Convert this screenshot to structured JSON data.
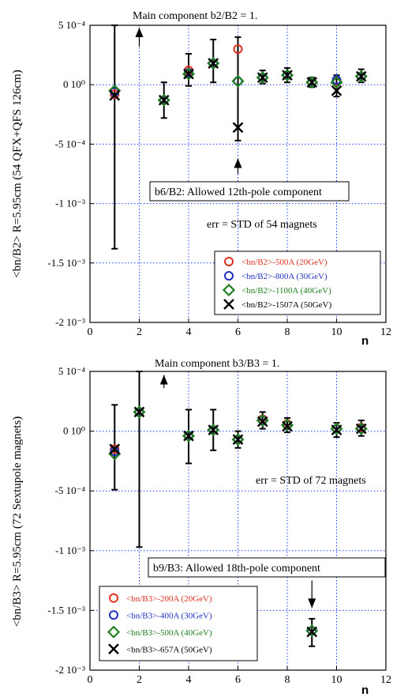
{
  "chart_data": [
    {
      "type": "scatter",
      "title": "Main component b2/B2 = 1.",
      "ylabel": "<bn/B2> R=5.95cm (54 QFX+QFS 126cm)",
      "xlabel": "n",
      "xlim": [
        0,
        12
      ],
      "ylim": [
        -0.002,
        0.0005
      ],
      "x_ticks": [
        0,
        2,
        4,
        6,
        8,
        10,
        12
      ],
      "y_ticks": [
        {
          "value": 0.0005,
          "label": "5 10⁻⁴"
        },
        {
          "value": 0,
          "label": "0 10⁰"
        },
        {
          "value": -0.0005,
          "label": "-5 10⁻⁴"
        },
        {
          "value": -0.001,
          "label": "-1 10⁻³"
        },
        {
          "value": -0.0015,
          "label": "-1.5 10⁻³"
        },
        {
          "value": -0.002,
          "label": "-2 10⁻³"
        }
      ],
      "grid": true,
      "annotations": {
        "component_note": "b6/B2: Allowed 12th-pole component",
        "err_note": "err = STD of 54 magnets"
      },
      "legend_position": "bottom-right",
      "series": [
        {
          "name": "<bn/B2>-500A  (20GeV)",
          "color": "#e03020",
          "marker": "circle",
          "x": [
            1,
            3,
            4,
            5,
            6,
            7,
            8,
            9,
            10,
            11
          ],
          "y": [
            -8e-05,
            -0.00013,
            0.00012,
            0.00018,
            0.0003,
            6e-05,
            8e-05,
            2e-05,
            3e-05,
            7e-05
          ]
        },
        {
          "name": "<bn/B2>-800A  (30GeV)",
          "color": "#2030c0",
          "marker": "circle",
          "x": [
            1,
            3,
            4,
            5,
            6,
            7,
            8,
            9,
            10,
            11
          ],
          "y": [
            -6e-05,
            -0.00013,
            0.0001,
            0.00018,
            3e-05,
            6e-05,
            8e-05,
            2e-05,
            4e-05,
            7e-05
          ]
        },
        {
          "name": "<bn/B2>-1100A (40GeV)",
          "color": "#208020",
          "marker": "diamond",
          "x": [
            1,
            3,
            4,
            5,
            6,
            7,
            8,
            9,
            10,
            11
          ],
          "y": [
            -5e-05,
            -0.00013,
            9e-05,
            0.00018,
            3e-05,
            6e-05,
            8e-05,
            2e-05,
            2e-05,
            7e-05
          ]
        },
        {
          "name": "<bn/B2>-1507A (50GeV)",
          "color": "#000000",
          "marker": "x",
          "x": [
            1,
            3,
            4,
            5,
            6,
            7,
            8,
            9,
            10,
            11
          ],
          "y": [
            -9e-05,
            -0.00013,
            9e-05,
            0.00018,
            -0.00036,
            6e-05,
            8e-05,
            2e-05,
            -5e-05,
            7e-05
          ]
        }
      ],
      "error_bars": [
        {
          "x": 1,
          "low": -0.00138,
          "high": 0.0005
        },
        {
          "x": 3,
          "low": -0.00028,
          "high": 2e-05
        },
        {
          "x": 4,
          "low": -1e-05,
          "high": 0.00026
        },
        {
          "x": 5,
          "low": 2e-05,
          "high": 0.00038
        },
        {
          "x": 6,
          "low": -0.00047,
          "high": 0.0004
        },
        {
          "x": 7,
          "low": 1e-05,
          "high": 0.00012
        },
        {
          "x": 8,
          "low": 2e-05,
          "high": 0.00014
        },
        {
          "x": 9,
          "low": -2e-05,
          "high": 6e-05
        },
        {
          "x": 10,
          "low": -0.0001,
          "high": 8e-05
        },
        {
          "x": 11,
          "low": 2e-05,
          "high": 0.00013
        }
      ],
      "arrows": [
        {
          "x": 2,
          "from": 0.00032,
          "to": 0.00048
        },
        {
          "x": 6,
          "from": -0.00075,
          "to": -0.00062
        }
      ]
    },
    {
      "type": "scatter",
      "title": "Main component b3/B3 = 1.",
      "ylabel": "<bn/B3> R=5.95cm (72 Sextupole magnets)",
      "xlabel": "n",
      "xlim": [
        0,
        12
      ],
      "ylim": [
        -0.002,
        0.0005
      ],
      "x_ticks": [
        0,
        2,
        4,
        6,
        8,
        10,
        12
      ],
      "y_ticks": [
        {
          "value": 0.0005,
          "label": "5 10⁻⁴"
        },
        {
          "value": 0,
          "label": "0 10⁰"
        },
        {
          "value": -0.0005,
          "label": "-5 10⁻⁴"
        },
        {
          "value": -0.001,
          "label": "-1 10⁻³"
        },
        {
          "value": -0.0015,
          "label": "-1.5 10⁻³"
        },
        {
          "value": -0.002,
          "label": "-2 10⁻³"
        }
      ],
      "grid": true,
      "annotations": {
        "component_note": "b9/B3: Allowed 18th-pole component",
        "err_note": "err = STD of 72 magnets"
      },
      "legend_position": "bottom-left",
      "series": [
        {
          "name": "<bn/B3>-200A (20GeV)",
          "color": "#e03020",
          "marker": "circle",
          "x": [
            1,
            2,
            4,
            5,
            6,
            7,
            8,
            10,
            11
          ],
          "y": [
            -0.00015,
            0.00016,
            -4e-05,
            1e-05,
            -7e-05,
            0.0001,
            6e-05,
            2e-05,
            3e-05
          ]
        },
        {
          "name": "<bn/B3>-400A (30GeV)",
          "color": "#2030c0",
          "marker": "circle",
          "x": [
            1,
            2,
            4,
            5,
            6,
            7,
            8,
            9,
            10,
            11
          ],
          "y": [
            -0.00017,
            0.00016,
            -4e-05,
            1e-05,
            -7e-05,
            9e-05,
            5e-05,
            -0.00167,
            2e-05,
            2e-05
          ]
        },
        {
          "name": "<bn/B3>-500A (40GeV)",
          "color": "#208020",
          "marker": "diamond",
          "x": [
            1,
            2,
            4,
            5,
            6,
            7,
            8,
            9,
            10,
            11
          ],
          "y": [
            -0.00019,
            0.00016,
            -4e-05,
            1e-05,
            -7e-05,
            9e-05,
            5e-05,
            -0.00167,
            2e-05,
            2e-05
          ]
        },
        {
          "name": "<bn/B3>-657A (50GeV)",
          "color": "#000000",
          "marker": "x",
          "x": [
            1,
            2,
            4,
            5,
            6,
            7,
            8,
            9,
            10,
            11
          ],
          "y": [
            -0.00015,
            0.00016,
            -4e-05,
            1e-05,
            -7e-05,
            8e-05,
            4e-05,
            -0.00168,
            1e-05,
            2e-05
          ]
        }
      ],
      "error_bars": [
        {
          "x": 1,
          "low": -0.00049,
          "high": 0.00022
        },
        {
          "x": 2,
          "low": -0.00097,
          "high": 0.0005
        },
        {
          "x": 4,
          "low": -0.00027,
          "high": 0.00018
        },
        {
          "x": 5,
          "low": -0.00016,
          "high": 0.00018
        },
        {
          "x": 6,
          "low": -0.00014,
          "high": 0
        },
        {
          "x": 7,
          "low": 2e-05,
          "high": 0.00016
        },
        {
          "x": 8,
          "low": -1e-05,
          "high": 0.00011
        },
        {
          "x": 9,
          "low": -0.0018,
          "high": -0.00157
        },
        {
          "x": 10,
          "low": -5e-05,
          "high": 7e-05
        },
        {
          "x": 11,
          "low": -4e-05,
          "high": 9e-05
        }
      ],
      "arrows": [
        {
          "x": 3,
          "from": 0.00036,
          "to": 0.00047
        },
        {
          "x": 9,
          "from": -0.00125,
          "to": -0.00148
        }
      ]
    }
  ]
}
